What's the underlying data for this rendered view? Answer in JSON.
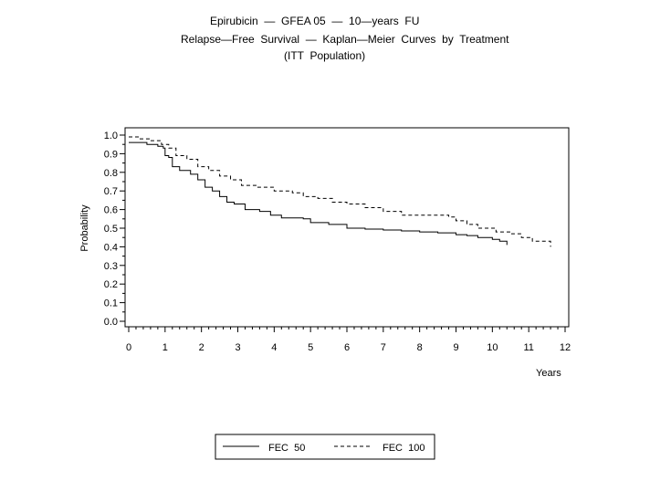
{
  "chart_data": {
    "type": "line",
    "title": [
      "Epirubicin  —  GFEA 05  —  10—years  FU",
      "Relapse—Free  Survival  —  Kaplan—Meier  Curves  by  Treatment",
      "(ITT  Population)"
    ],
    "xlabel": "Years",
    "ylabel": "Probability",
    "xlim": [
      0,
      12
    ],
    "ylim": [
      0,
      1
    ],
    "xticks": [
      "0",
      "1",
      "2",
      "3",
      "4",
      "5",
      "6",
      "7",
      "8",
      "9",
      "10",
      "11",
      "12"
    ],
    "yticks": [
      "0.0",
      "0.1",
      "0.2",
      "0.3",
      "0.4",
      "0.5",
      "0.6",
      "0.7",
      "0.8",
      "0.9",
      "1.0"
    ],
    "grid": false,
    "legend_position": "bottom",
    "series": [
      {
        "name": "FEC  50",
        "style": "solid",
        "x": [
          0,
          0.5,
          0.8,
          0.95,
          1.0,
          1.1,
          1.2,
          1.4,
          1.7,
          1.9,
          2.1,
          2.3,
          2.5,
          2.7,
          2.9,
          3.2,
          3.6,
          3.9,
          4.2,
          4.8,
          5.0,
          5.5,
          6.0,
          6.5,
          7.0,
          7.5,
          8.0,
          8.5,
          9.0,
          9.3,
          9.6,
          10.0,
          10.2,
          10.4
        ],
        "y": [
          0.96,
          0.95,
          0.94,
          0.93,
          0.89,
          0.88,
          0.83,
          0.81,
          0.79,
          0.76,
          0.72,
          0.7,
          0.67,
          0.64,
          0.63,
          0.6,
          0.59,
          0.57,
          0.555,
          0.55,
          0.53,
          0.52,
          0.5,
          0.495,
          0.49,
          0.485,
          0.48,
          0.475,
          0.465,
          0.46,
          0.45,
          0.44,
          0.43,
          0.41
        ]
      },
      {
        "name": "FEC  100",
        "style": "dashed",
        "x": [
          0,
          0.3,
          0.6,
          0.9,
          1.1,
          1.3,
          1.6,
          1.9,
          2.2,
          2.5,
          2.8,
          3.1,
          3.5,
          4.0,
          4.5,
          4.8,
          5.2,
          5.6,
          6.0,
          6.5,
          7.0,
          7.5,
          8.0,
          8.8,
          9.0,
          9.3,
          9.6,
          10.1,
          10.5,
          10.8,
          11.1,
          11.6
        ],
        "y": [
          0.99,
          0.98,
          0.97,
          0.95,
          0.93,
          0.89,
          0.87,
          0.83,
          0.81,
          0.78,
          0.76,
          0.73,
          0.72,
          0.7,
          0.69,
          0.67,
          0.66,
          0.64,
          0.63,
          0.61,
          0.59,
          0.57,
          0.57,
          0.56,
          0.54,
          0.52,
          0.5,
          0.48,
          0.47,
          0.45,
          0.43,
          0.4
        ]
      }
    ]
  }
}
